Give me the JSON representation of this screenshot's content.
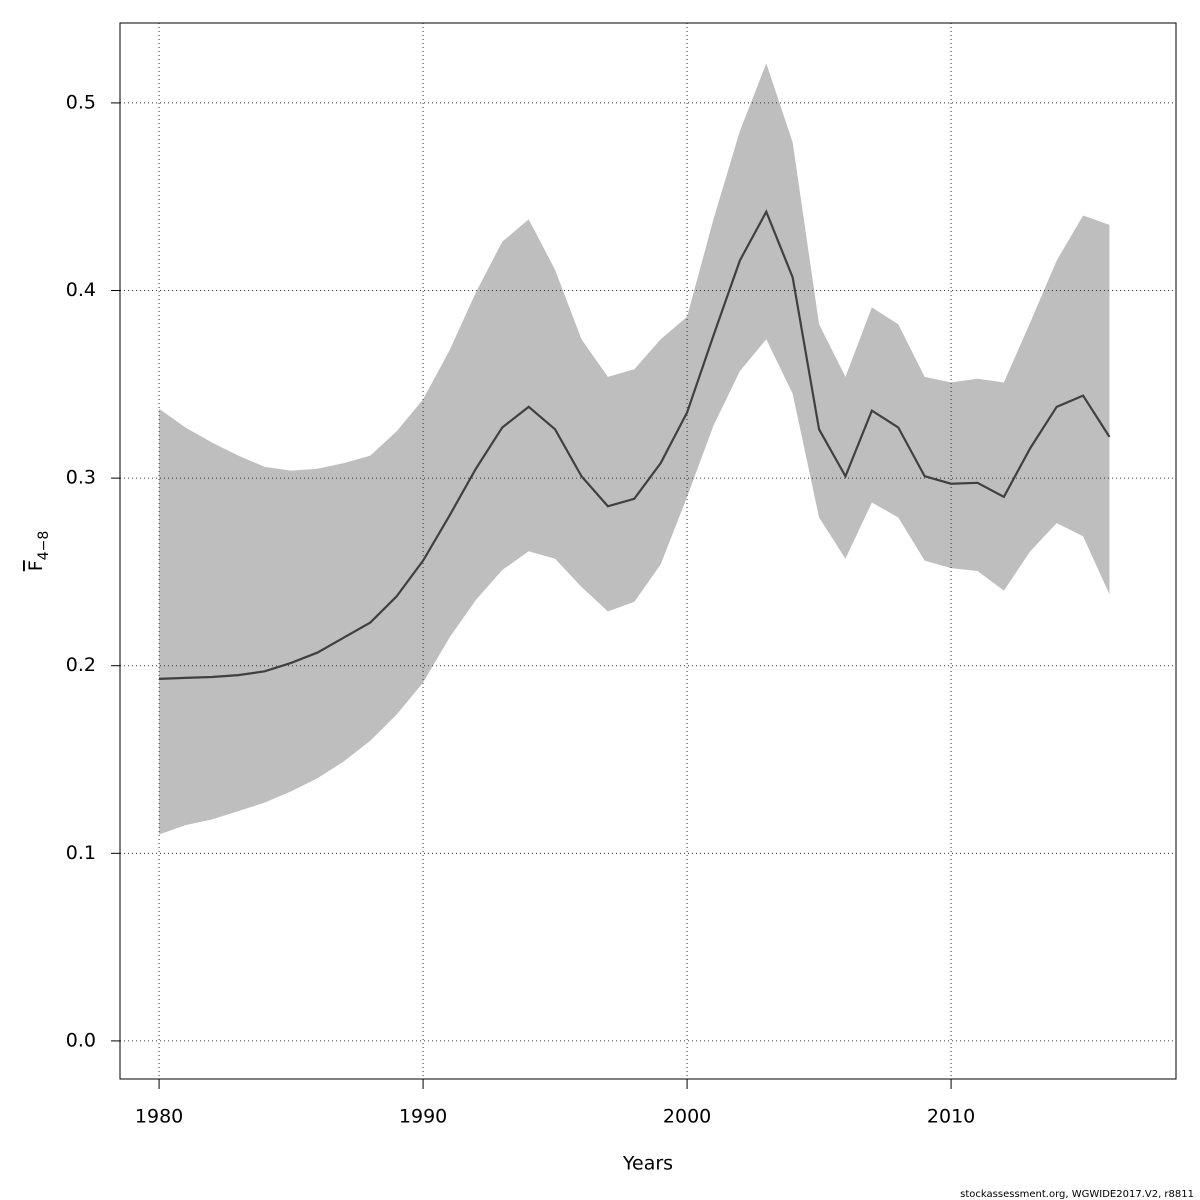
{
  "chart_data": {
    "type": "band-line",
    "xlabel": "Years",
    "ylabel": {
      "base": "F",
      "subscript": "4−8"
    },
    "footer": "stockassessment.org, WGWIDE2017.V2, r8811",
    "x": [
      1980,
      1981,
      1982,
      1983,
      1984,
      1985,
      1986,
      1987,
      1988,
      1989,
      1990,
      1991,
      1992,
      1993,
      1994,
      1995,
      1996,
      1997,
      1998,
      1999,
      2000,
      2001,
      2002,
      2003,
      2004,
      2005,
      2006,
      2007,
      2008,
      2009,
      2010,
      2011,
      2012,
      2013,
      2014,
      2015,
      2016
    ],
    "values": [
      0.193,
      0.1935,
      0.194,
      0.195,
      0.197,
      0.2015,
      0.207,
      0.215,
      0.223,
      0.237,
      0.256,
      0.28,
      0.305,
      0.327,
      0.338,
      0.326,
      0.301,
      0.285,
      0.289,
      0.308,
      0.335,
      0.376,
      0.416,
      0.442,
      0.407,
      0.326,
      0.301,
      0.336,
      0.327,
      0.301,
      0.297,
      0.2975,
      0.29,
      0.316,
      0.338,
      0.344,
      0.322
    ],
    "upper": [
      0.337,
      0.327,
      0.319,
      0.312,
      0.306,
      0.304,
      0.305,
      0.308,
      0.312,
      0.325,
      0.342,
      0.368,
      0.399,
      0.426,
      0.438,
      0.411,
      0.374,
      0.354,
      0.358,
      0.374,
      0.386,
      0.438,
      0.485,
      0.521,
      0.479,
      0.382,
      0.354,
      0.391,
      0.382,
      0.354,
      0.351,
      0.353,
      0.351,
      0.383,
      0.416,
      0.44,
      0.435
    ],
    "lower": [
      0.11,
      0.115,
      0.118,
      0.1225,
      0.127,
      0.133,
      0.14,
      0.149,
      0.16,
      0.174,
      0.191,
      0.215,
      0.235,
      0.251,
      0.261,
      0.257,
      0.242,
      0.229,
      0.234,
      0.254,
      0.29,
      0.328,
      0.357,
      0.374,
      0.345,
      0.279,
      0.257,
      0.287,
      0.279,
      0.256,
      0.252,
      0.2505,
      0.24,
      0.261,
      0.276,
      0.269,
      0.238
    ],
    "line_color": "#404040",
    "band_color": "#bebebe",
    "xlim": [
      1978.52,
      2018.52
    ],
    "ylim": [
      -0.0203,
      0.5426
    ],
    "xticks": [
      1980,
      1990,
      2000,
      2010
    ],
    "yticks": [
      {
        "value": 0,
        "label": "0.0"
      },
      0.1,
      0.2,
      0.3,
      0.4,
      0.5
    ],
    "grid": true
  }
}
